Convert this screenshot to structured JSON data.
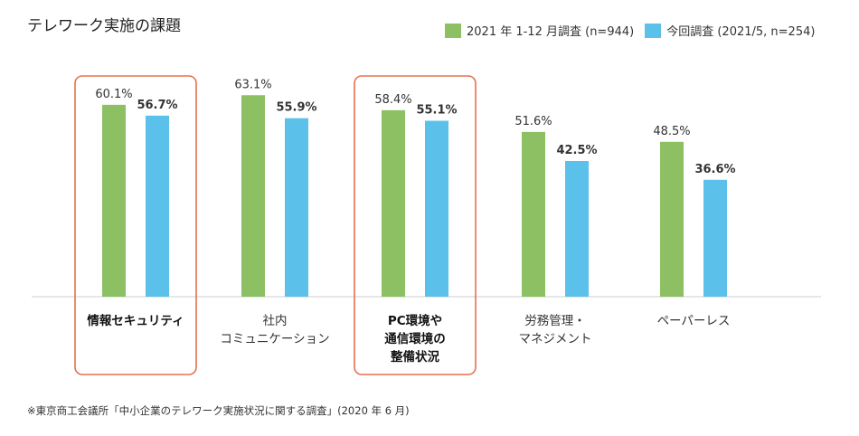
{
  "page": {
    "title": "テレワーク実施の課題",
    "footnote": "※東京商工会議所「中小企業のテレワーク実施状況に関する調査」(2020 年 6 月)"
  },
  "colors": {
    "series_2021": "#8cc063",
    "series_now": "#5bc1ea",
    "highlight": "#e8704e",
    "baseline": "#cccccc"
  },
  "chart_data": {
    "type": "bar",
    "title": "テレワーク実施の課題",
    "xlabel": "",
    "ylabel": "",
    "ylim": [
      0,
      100
    ],
    "grid": false,
    "legend_position": "top-right",
    "categories": [
      [
        "情報セキュリティ"
      ],
      [
        "社内",
        "コミュニケーション"
      ],
      [
        "PC環境や",
        "通信環境の",
        "整備状況"
      ],
      [
        "労務管理・",
        "マネジメント"
      ],
      [
        "ペーパーレス"
      ]
    ],
    "highlighted": [
      true,
      false,
      true,
      false,
      false
    ],
    "series": [
      {
        "name": "2021 年 1-12 月調査 (n=944)",
        "values": [
          60.1,
          63.1,
          58.4,
          51.6,
          48.5
        ],
        "labels": [
          "60.1%",
          "63.1%",
          "58.4%",
          "51.6%",
          "48.5%"
        ]
      },
      {
        "name": "今回調査 (2021/5, n=254)",
        "values": [
          56.7,
          55.9,
          55.1,
          42.5,
          36.6
        ],
        "labels": [
          "56.7%",
          "55.9%",
          "55.1%",
          "42.5%",
          "36.6%"
        ]
      }
    ]
  }
}
